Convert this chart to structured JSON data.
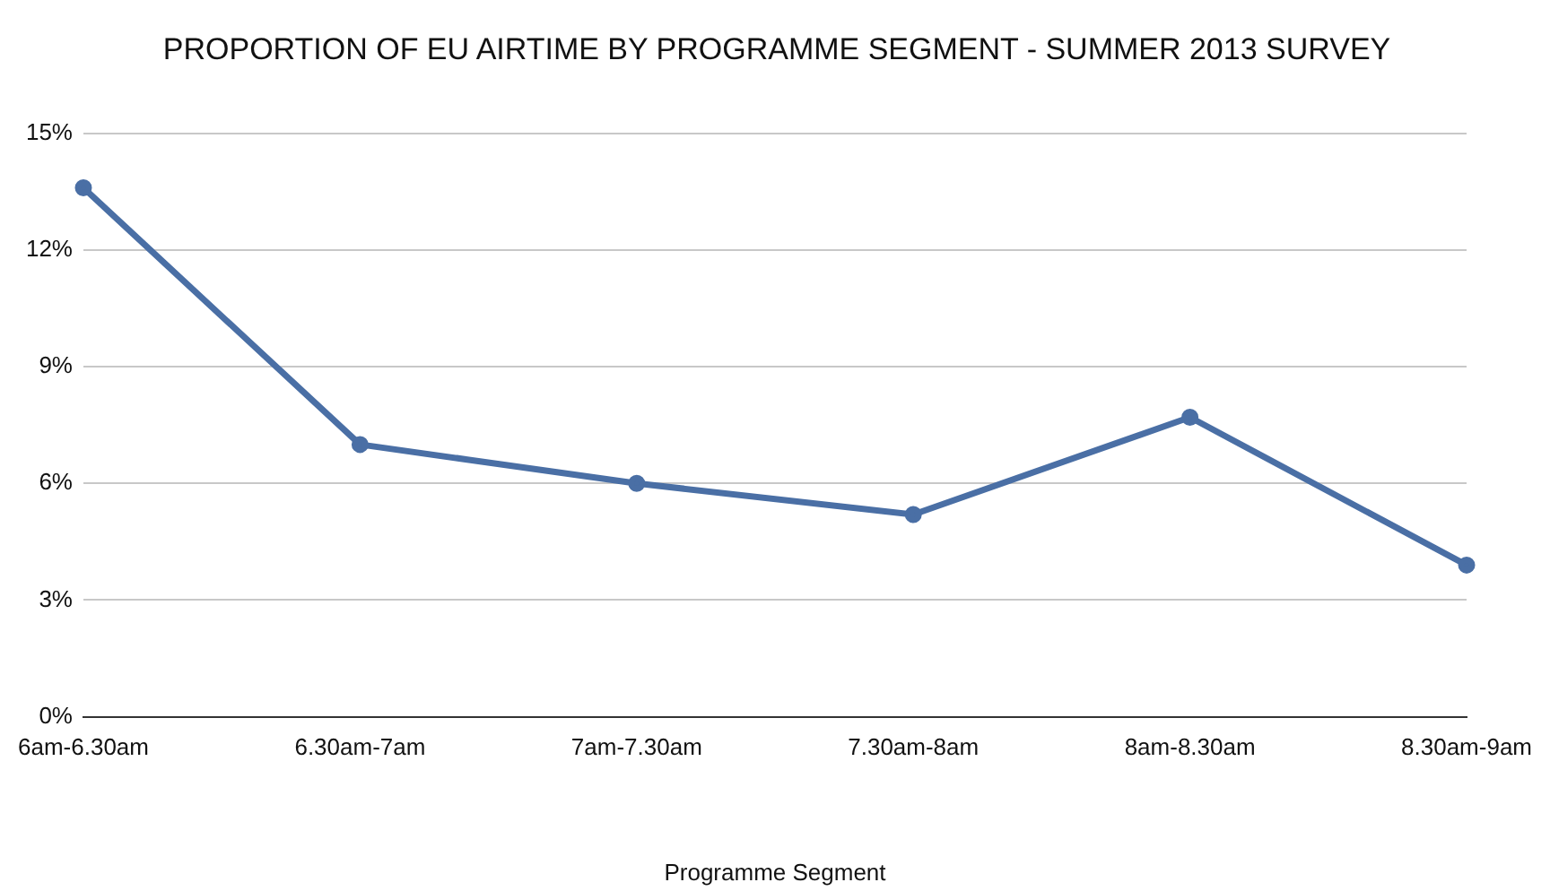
{
  "chart_data": {
    "type": "line",
    "title": "PROPORTION OF EU AIRTIME BY PROGRAMME SEGMENT - SUMMER 2013 SURVEY",
    "xlabel": "Programme Segment",
    "categories": [
      "6am-6.30am",
      "6.30am-7am",
      "7am-7.30am",
      "7.30am-8am",
      "8am-8.30am",
      "8.30am-9am"
    ],
    "series": [
      {
        "color": "#4a6fa5",
        "values": [
          13.6,
          7.0,
          6.0,
          5.2,
          7.7,
          3.9
        ]
      }
    ],
    "ylim": [
      0,
      15
    ],
    "yticks": [
      {
        "value": 0,
        "label": "0%"
      },
      {
        "value": 3,
        "label": "3%"
      },
      {
        "value": 6,
        "label": "6%"
      },
      {
        "value": 9,
        "label": "9%"
      },
      {
        "value": 12,
        "label": "12%"
      },
      {
        "value": 15,
        "label": "15%"
      }
    ],
    "grid": "y",
    "marker": "circle",
    "line_style": "solid"
  }
}
